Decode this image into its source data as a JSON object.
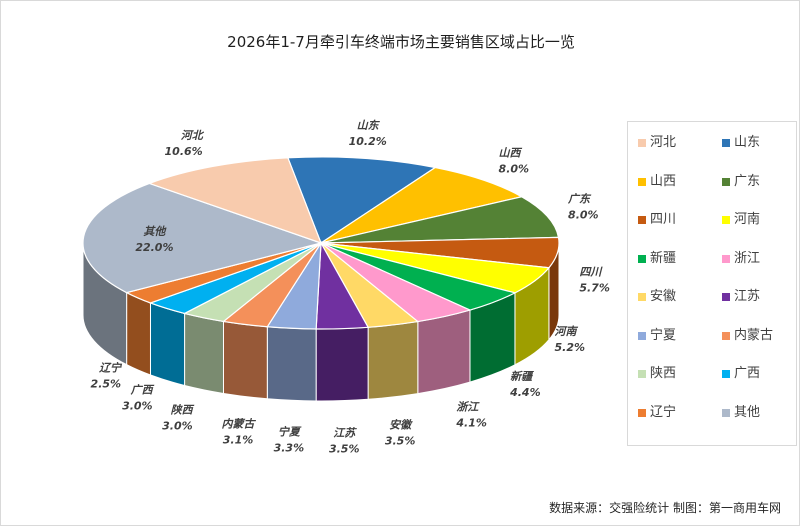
{
  "title": "2026年1-7月牵引车终端市场主要销售区域占比一览",
  "source_note": "数据来源：交强险统计   制图：第一商用车网",
  "chart_data": {
    "type": "pie",
    "title": "2026年1-7月牵引车终端市场主要销售区域占比一览",
    "legend_position": "right",
    "slices": [
      {
        "name": "山东",
        "value": 10.2,
        "label": "10.2%",
        "color": "#2e75b6"
      },
      {
        "name": "山西",
        "value": 8.0,
        "label": "8.0%",
        "color": "#ffc000"
      },
      {
        "name": "广东",
        "value": 8.0,
        "label": "8.0%",
        "color": "#548235"
      },
      {
        "name": "四川",
        "value": 5.7,
        "label": "5.7%",
        "color": "#c55a11"
      },
      {
        "name": "河南",
        "value": 5.2,
        "label": "5.2%",
        "color": "#ffff00"
      },
      {
        "name": "新疆",
        "value": 4.4,
        "label": "4.4%",
        "color": "#00b050"
      },
      {
        "name": "浙江",
        "value": 4.1,
        "label": "4.1%",
        "color": "#ff99cc"
      },
      {
        "name": "安徽",
        "value": 3.5,
        "label": "3.5%",
        "color": "#ffd966"
      },
      {
        "name": "江苏",
        "value": 3.5,
        "label": "3.5%",
        "color": "#7030a0"
      },
      {
        "name": "宁夏",
        "value": 3.3,
        "label": "3.3%",
        "color": "#8faadc"
      },
      {
        "name": "内蒙古",
        "value": 3.1,
        "label": "3.1%",
        "color": "#f4905a"
      },
      {
        "name": "陕西",
        "value": 3.0,
        "label": "3.0%",
        "color": "#c5e0b4"
      },
      {
        "name": "广西",
        "value": 3.0,
        "label": "3.0%",
        "color": "#00b0f0"
      },
      {
        "name": "辽宁",
        "value": 2.5,
        "label": "2.5%",
        "color": "#ed7d31"
      },
      {
        "name": "其他",
        "value": 22.0,
        "label": "22.0%",
        "color": "#adb9ca"
      },
      {
        "name": "河北",
        "value": 10.6,
        "label": "10.6%",
        "color": "#f8cbad"
      }
    ],
    "legend": [
      "河北",
      "山东",
      "山西",
      "广东",
      "四川",
      "河南",
      "新疆",
      "浙江",
      "安徽",
      "江苏",
      "宁夏",
      "内蒙古",
      "陕西",
      "广西",
      "辽宁",
      "其他"
    ]
  }
}
